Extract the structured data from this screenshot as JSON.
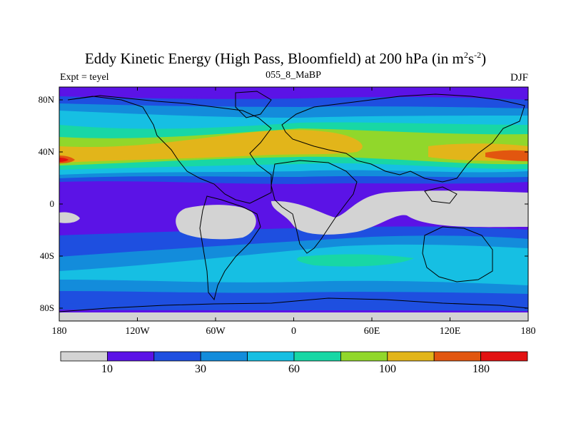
{
  "title": {
    "main": "Eddy Kinetic Energy (High Pass, Bloomfield) at 200 hPa (in m",
    "sup1": "2",
    "mid": "s",
    "sup2": "-2",
    "end": ")"
  },
  "subtitle": "055_8_MaBP",
  "left_label": "Expt = teyel",
  "right_label": "DJF",
  "lat_ticks": [
    "80N",
    "40N",
    "0",
    "40S",
    "80S"
  ],
  "lon_ticks": [
    "180",
    "120W",
    "60W",
    "0",
    "60E",
    "120E",
    "180"
  ],
  "colorbar": {
    "colors": [
      "#d3d3d3",
      "#5b13e6",
      "#1e4fe0",
      "#138cdb",
      "#16bfe3",
      "#18d7a5",
      "#91d72b",
      "#e2b51a",
      "#e2560f",
      "#e21212"
    ],
    "labels": [
      "10",
      "30",
      "60",
      "100",
      "180"
    ]
  },
  "map": {
    "projection": "cylindrical-equidistant",
    "field": "eddy kinetic energy",
    "level_hpa": 200
  }
}
